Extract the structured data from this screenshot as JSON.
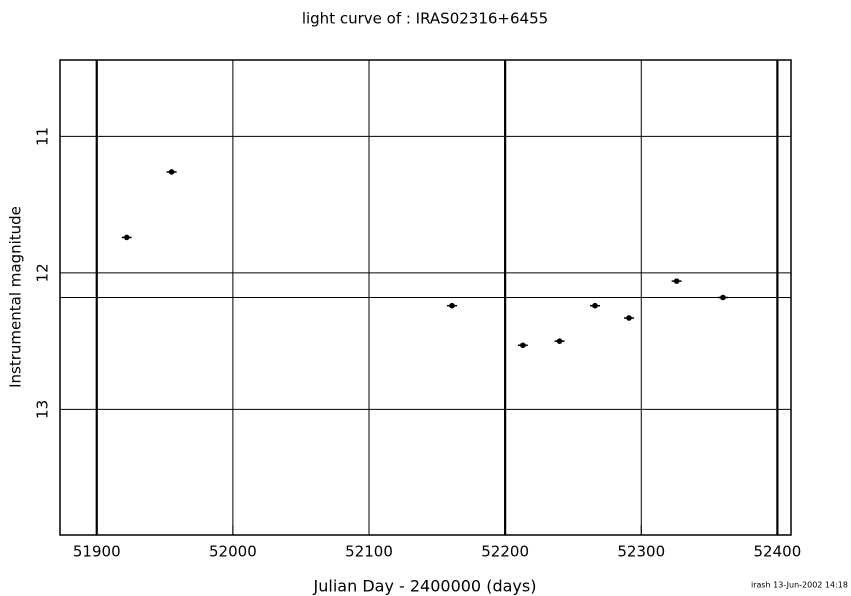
{
  "chart_data": {
    "type": "scatter",
    "title": "light curve of : IRAS02316+6455",
    "xlabel": "Julian Day - 2400000 (days)",
    "ylabel": "Instrumental magnitude",
    "footer": "irash 13-Jun-2002 14:18",
    "x": [
      51922,
      51955,
      52161,
      52213,
      52240,
      52266,
      52291,
      52326,
      52360
    ],
    "values": [
      11.74,
      11.26,
      12.24,
      12.53,
      12.5,
      12.24,
      12.33,
      12.06,
      12.18
    ],
    "color": "#000000",
    "xlim": [
      51873,
      52410
    ],
    "ylim": [
      13.92,
      10.44
    ],
    "xticks": [
      51900,
      52000,
      52100,
      52200,
      52300,
      52400
    ],
    "yticks": [
      11,
      12,
      13
    ],
    "vlines": [
      51900,
      52200,
      52400
    ],
    "hlines": [
      12.18
    ],
    "grid": true
  }
}
